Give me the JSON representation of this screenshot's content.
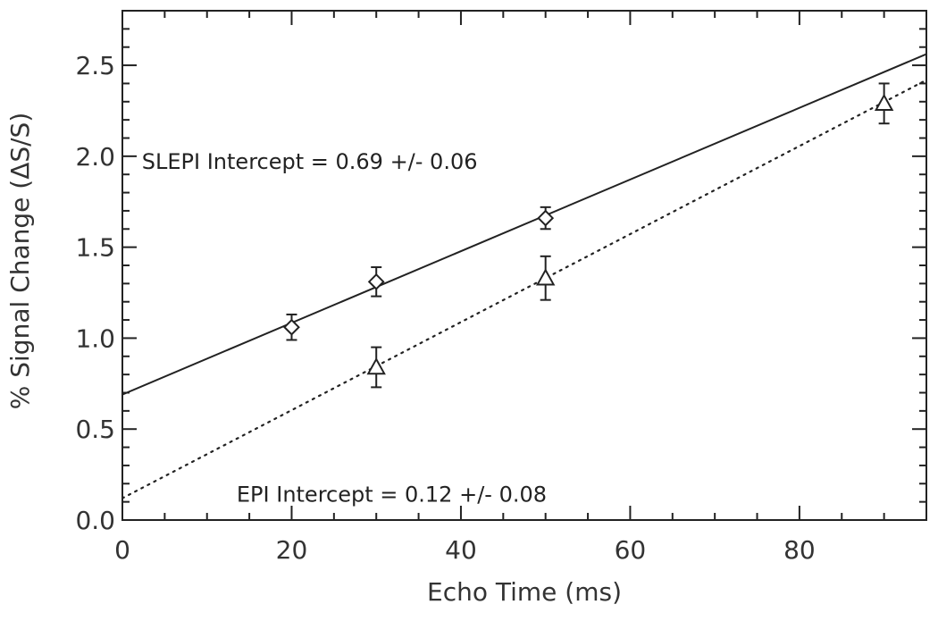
{
  "chart_data": {
    "type": "scatter",
    "title": "",
    "xlabel": "Echo Time (ms)",
    "ylabel": "% Signal Change (ΔS/S)",
    "xlim": [
      0,
      95
    ],
    "ylim": [
      0,
      2.8
    ],
    "x_ticks": [
      0,
      20,
      40,
      60,
      80
    ],
    "x_tick_labels": [
      "0",
      "20",
      "40",
      "60",
      "80"
    ],
    "y_ticks": [
      0.0,
      0.5,
      1.0,
      1.5,
      2.0,
      2.5
    ],
    "y_tick_labels": [
      "0.0",
      "0.5",
      "1.0",
      "1.5",
      "2.0",
      "2.5"
    ],
    "grid": false,
    "series": [
      {
        "marker": "diamond",
        "line_style": "solid",
        "fit": {
          "intercept": 0.69,
          "slope": 0.0197
        },
        "points": [
          {
            "x": 20,
            "y": 1.06,
            "err": 0.07
          },
          {
            "x": 30,
            "y": 1.31,
            "err": 0.08
          },
          {
            "x": 50,
            "y": 1.66,
            "err": 0.06
          }
        ]
      },
      {
        "marker": "triangle",
        "line_style": "dotted",
        "fit": {
          "intercept": 0.12,
          "slope": 0.0242
        },
        "points": [
          {
            "x": 30,
            "y": 0.84,
            "err": 0.11
          },
          {
            "x": 50,
            "y": 1.33,
            "err": 0.12
          },
          {
            "x": 90,
            "y": 2.29,
            "err": 0.11
          }
        ]
      }
    ],
    "annotations": [
      {
        "text": "SLEPI Intercept = 0.69 +/- 0.06",
        "x": 2.3,
        "y": 1.93
      },
      {
        "text": "EPI Intercept = 0.12 +/- 0.08",
        "x": 13.5,
        "y": 0.1
      }
    ]
  }
}
